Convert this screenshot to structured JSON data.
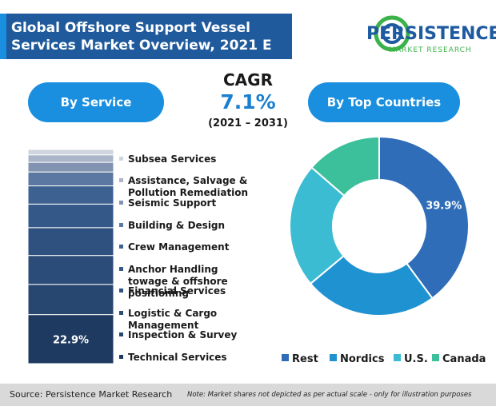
{
  "header": {
    "title": "Global Offshore Support Vessel Services Market Overview, 2021 E"
  },
  "logo": {
    "name": "PERSISTENCE",
    "tagline": "MARKET RESEARCH"
  },
  "cagr": {
    "label": "CAGR",
    "value": "7.1%",
    "period": "(2021 – 2031)"
  },
  "chart_data": [
    {
      "type": "stacked-bar",
      "title": "By Service",
      "series": [
        {
          "name": "Technical Services",
          "color": "#1f3a60",
          "values": [
            22.9
          ],
          "value_labels": [
            "22.9%"
          ]
        },
        {
          "name": "Inspection & Survey",
          "color": "#274670",
          "values": [
            14.1
          ]
        },
        {
          "name": "Logistic & Cargo Management",
          "color": "#2b4c78",
          "values": [
            13.5
          ]
        },
        {
          "name": "Financial Services",
          "color": "#2f5180",
          "values": [
            13
          ]
        },
        {
          "name": "Anchor Handling towage & offshore positioning",
          "color": "#345887",
          "values": [
            11
          ]
        },
        {
          "name": "Crew Management",
          "color": "#3d6190",
          "values": [
            8.5
          ]
        },
        {
          "name": "Building & Design",
          "color": "#5b78a2",
          "values": [
            6.5
          ]
        },
        {
          "name": "Seismic Support",
          "color": "#8193b1",
          "values": [
            4.5
          ]
        },
        {
          "name": "Assistance, Salvage & Pollution Remediation",
          "color": "#aab5c8",
          "values": [
            3.5
          ]
        },
        {
          "name": "Subsea Services",
          "color": "#cfd5df",
          "values": [
            2.5
          ]
        }
      ]
    },
    {
      "type": "donut",
      "title": "By Top Countries",
      "categories": [
        "Rest",
        "Nordics",
        "U.S.",
        "Canada"
      ],
      "values": [
        39.9,
        24,
        22.5,
        13.6
      ],
      "value_labels": [
        "39.9%",
        null,
        null,
        null
      ],
      "colors": [
        "#2f6db8",
        "#1f92d2",
        "#3cbcd2",
        "#3cc09c"
      ]
    }
  ],
  "footer": {
    "source": "Source: Persistence Market Research",
    "note": "Note: Market shares not depicted as per actual scale - only for illustration purposes"
  }
}
